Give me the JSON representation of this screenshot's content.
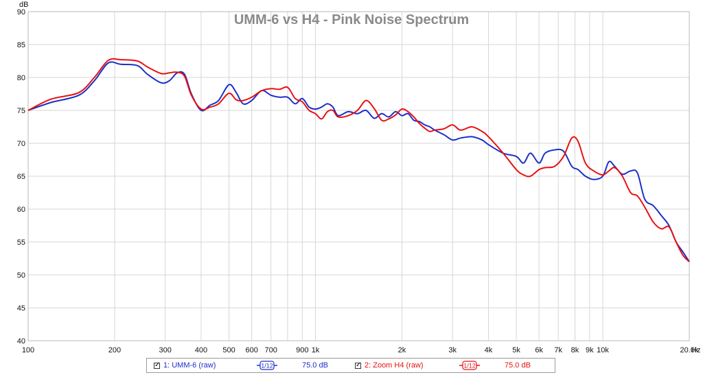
{
  "chart_data": {
    "type": "line",
    "title": "UMM-6 vs H4 -  Pink Noise Spectrum",
    "ylabel": "dB",
    "xunit": "Hz",
    "xscale": "log",
    "xlim": [
      100,
      20000
    ],
    "ylim": [
      40,
      90
    ],
    "yticks": [
      40,
      45,
      50,
      55,
      60,
      65,
      70,
      75,
      80,
      85,
      90
    ],
    "xticks": [
      {
        "v": 100,
        "label": "100"
      },
      {
        "v": 200,
        "label": "200"
      },
      {
        "v": 300,
        "label": "300"
      },
      {
        "v": 400,
        "label": "400"
      },
      {
        "v": 500,
        "label": "500"
      },
      {
        "v": 600,
        "label": "600"
      },
      {
        "v": 700,
        "label": "700"
      },
      {
        "v": 900,
        "label": "900"
      },
      {
        "v": 1000,
        "label": "1k"
      },
      {
        "v": 2000,
        "label": "2k"
      },
      {
        "v": 3000,
        "label": "3k"
      },
      {
        "v": 4000,
        "label": "4k"
      },
      {
        "v": 5000,
        "label": "5k"
      },
      {
        "v": 6000,
        "label": "6k"
      },
      {
        "v": 7000,
        "label": "7k"
      },
      {
        "v": 8000,
        "label": "8k"
      },
      {
        "v": 9000,
        "label": "9k"
      },
      {
        "v": 10000,
        "label": "10k"
      },
      {
        "v": 20000,
        "label": "20.0k"
      }
    ],
    "grid_minor_x": [
      800,
      8000
    ],
    "grid": true,
    "series": [
      {
        "name": "1: UMM-6 (raw)",
        "color": "#1a2fc8",
        "x": [
          100,
          120,
          150,
          170,
          190,
          210,
          240,
          260,
          290,
          310,
          330,
          350,
          370,
          400,
          430,
          460,
          500,
          530,
          560,
          600,
          650,
          700,
          750,
          800,
          850,
          900,
          950,
          1000,
          1050,
          1100,
          1150,
          1200,
          1300,
          1400,
          1500,
          1600,
          1700,
          1800,
          1900,
          2000,
          2100,
          2200,
          2300,
          2400,
          2500,
          2600,
          2800,
          3000,
          3200,
          3500,
          3800,
          4000,
          4500,
          5000,
          5300,
          5600,
          6000,
          6300,
          6800,
          7300,
          7800,
          8200,
          8700,
          9300,
          10000,
          10500,
          11000,
          11700,
          12500,
          13200,
          14000,
          15000,
          16000,
          17000,
          18000,
          19000,
          20000
        ],
        "y": [
          75,
          76.2,
          77.3,
          79.5,
          82.2,
          82.0,
          81.8,
          80.5,
          79.2,
          79.5,
          80.7,
          80.5,
          77.5,
          75.0,
          75.8,
          76.5,
          78.9,
          77.7,
          76.0,
          76.5,
          78.0,
          77.3,
          77.0,
          77.0,
          76.0,
          76.8,
          75.5,
          75.2,
          75.5,
          76.0,
          75.5,
          74.2,
          74.8,
          74.5,
          75.0,
          73.8,
          74.5,
          74.0,
          74.8,
          74.2,
          74.5,
          73.5,
          73.3,
          72.8,
          72.5,
          72.0,
          71.3,
          70.5,
          70.8,
          71.0,
          70.5,
          69.8,
          68.5,
          68.0,
          67.0,
          68.5,
          67.0,
          68.5,
          69.0,
          68.8,
          66.5,
          66.0,
          65.0,
          64.5,
          65.0,
          67.2,
          66.5,
          65.3,
          65.8,
          65.5,
          61.5,
          60.5,
          59.0,
          57.5,
          55.0,
          53.5,
          52.0
        ]
      },
      {
        "name": "2: Zoom H4 (raw)",
        "color": "#e81010",
        "x": [
          100,
          120,
          150,
          170,
          190,
          210,
          240,
          260,
          290,
          310,
          330,
          350,
          370,
          400,
          430,
          460,
          500,
          530,
          560,
          600,
          650,
          700,
          750,
          800,
          850,
          900,
          950,
          1000,
          1050,
          1100,
          1150,
          1200,
          1300,
          1400,
          1500,
          1600,
          1700,
          1800,
          1900,
          2000,
          2100,
          2200,
          2300,
          2400,
          2500,
          2600,
          2800,
          3000,
          3200,
          3500,
          3800,
          4000,
          4500,
          5000,
          5300,
          5600,
          6000,
          6300,
          6800,
          7300,
          7800,
          8200,
          8700,
          9300,
          10000,
          10500,
          11000,
          11700,
          12500,
          13200,
          14000,
          15000,
          16000,
          17000,
          18000,
          19000,
          20000
        ],
        "y": [
          75,
          76.7,
          77.7,
          80.0,
          82.6,
          82.7,
          82.5,
          81.6,
          80.6,
          80.7,
          80.8,
          80.2,
          77.3,
          75.2,
          75.5,
          76.0,
          77.6,
          76.6,
          76.5,
          77.0,
          78.0,
          78.3,
          78.2,
          78.5,
          76.8,
          76.3,
          75.0,
          74.5,
          73.7,
          74.8,
          75.0,
          74.0,
          74.2,
          75.0,
          76.5,
          75.3,
          73.5,
          73.7,
          74.3,
          75.2,
          74.8,
          74.0,
          73.0,
          72.3,
          71.8,
          72.0,
          72.2,
          72.8,
          72.0,
          72.5,
          71.8,
          71.0,
          68.5,
          66.0,
          65.2,
          65.0,
          66.0,
          66.3,
          66.5,
          68.0,
          70.8,
          70.3,
          67.0,
          65.8,
          65.2,
          65.8,
          66.3,
          65.0,
          62.5,
          62.0,
          60.3,
          58.0,
          57.0,
          57.3,
          55.0,
          53.0,
          52.0
        ]
      }
    ]
  },
  "legend": {
    "items": [
      {
        "label": "1: UMM-6 (raw)",
        "smoothing": "1/12",
        "level": "75.0 dB",
        "color": "#1a2fc8"
      },
      {
        "label": "2: Zoom H4 (raw)",
        "smoothing": "1/12",
        "level": "75.0 dB",
        "color": "#e81010"
      }
    ]
  }
}
